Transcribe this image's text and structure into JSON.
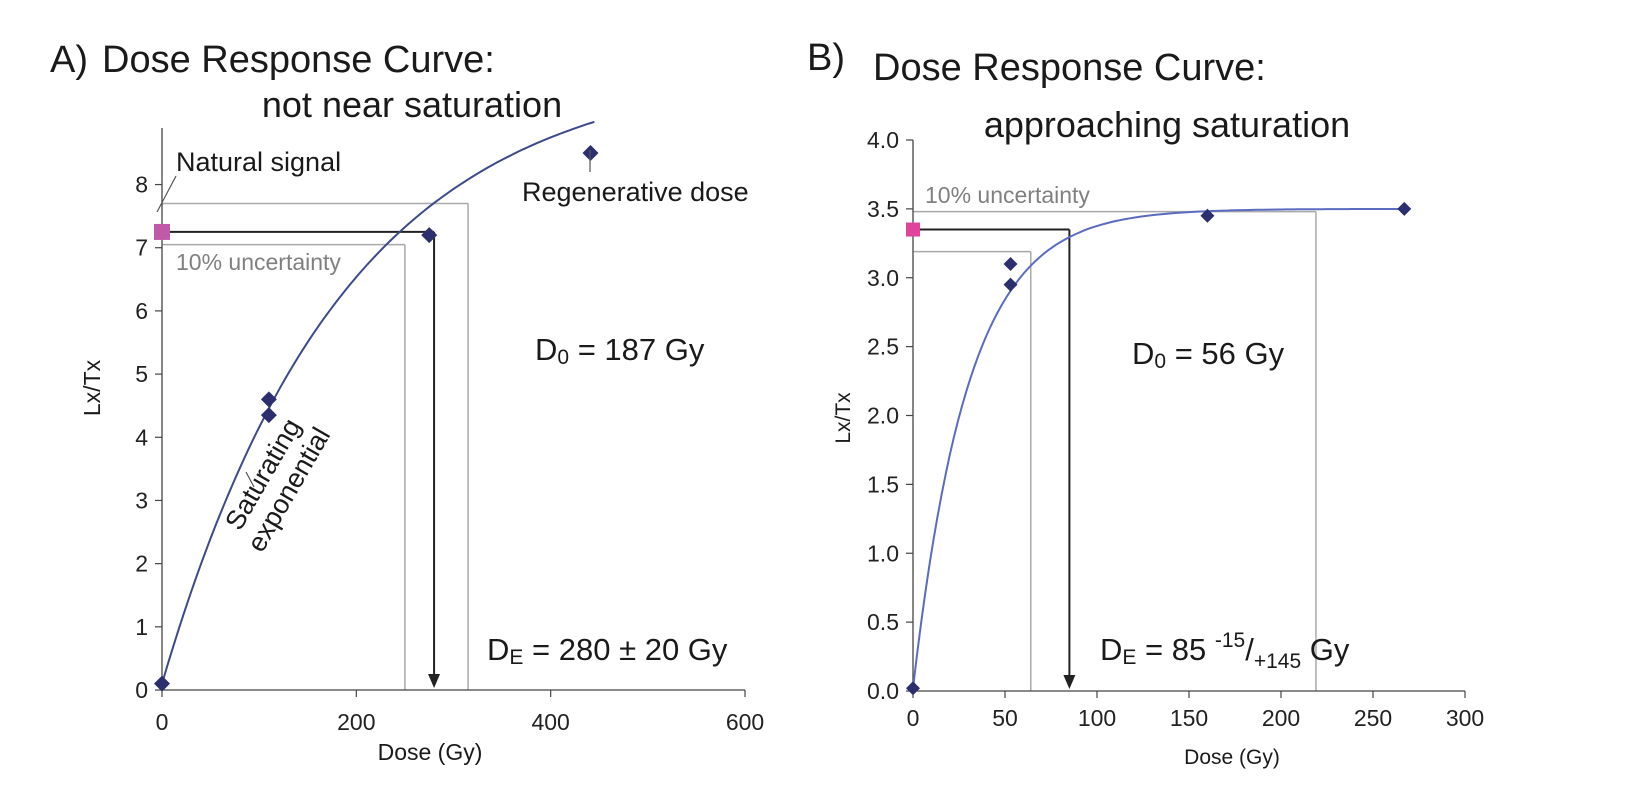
{
  "chart_data": [
    {
      "type": "scatter",
      "panel_label": "A)",
      "title": "Dose Response Curve:",
      "subtitle": "not near saturation",
      "xlabel": "Dose (Gy)",
      "ylabel": "Lx/Tx",
      "xlim": [
        0,
        600
      ],
      "ylim": [
        0,
        8.8
      ],
      "x_ticks": [
        "0",
        "200",
        "400",
        "600"
      ],
      "y_ticks": [
        "0",
        "1",
        "2",
        "3",
        "4",
        "5",
        "6",
        "7",
        "8"
      ],
      "series": [
        {
          "name": "Regenerative dose",
          "color": "#2b2f6e",
          "marker": "diamond",
          "points": [
            [
              0,
              0.1
            ],
            [
              110,
              4.6
            ],
            [
              110,
              4.35
            ],
            [
              275,
              7.2
            ],
            [
              441,
              8.5
            ]
          ]
        },
        {
          "name": "Natural signal",
          "color": "#c05aa8",
          "marker": "square",
          "points": [
            [
              0,
              7.25
            ]
          ]
        }
      ],
      "fit_curve": {
        "label": "Saturating exponential",
        "model": "saturating exponential",
        "color": "#3d4a8a"
      },
      "annotations": {
        "natural_signal": "Natural signal",
        "regenerative_dose": "Regenerative dose",
        "uncertainty": "10% uncertainty",
        "curve_label_line1": "Saturating",
        "curve_label_line2": "exponential",
        "d0_prefix": "D",
        "d0_sub": "0",
        "d0_value": " = 187 Gy",
        "de_prefix": "D",
        "de_sub": "E",
        "de_value": " = 280 ± 20 Gy"
      },
      "natural_lx_tx": 7.25,
      "uncertainty_band": {
        "upper_lx_tx": 7.7,
        "lower_lx_tx": 7.05,
        "lower_dose": 250,
        "upper_dose": 315
      },
      "equivalent_dose": 280,
      "d0": 187
    },
    {
      "type": "scatter",
      "panel_label": "B)",
      "title": "Dose Response Curve:",
      "subtitle": "approaching saturation",
      "xlabel": "Dose (Gy)",
      "ylabel": "Lx/Tx",
      "xlim": [
        0,
        300
      ],
      "ylim": [
        0,
        4.0
      ],
      "x_ticks": [
        "0",
        "50",
        "100",
        "150",
        "200",
        "250",
        "300"
      ],
      "y_ticks": [
        "0.0",
        "0.5",
        "1.0",
        "1.5",
        "2.0",
        "2.5",
        "3.0",
        "3.5",
        "4.0"
      ],
      "series": [
        {
          "name": "Regenerative dose",
          "color": "#2b2f6e",
          "marker": "diamond",
          "points": [
            [
              0,
              0.02
            ],
            [
              53,
              3.1
            ],
            [
              53,
              2.95
            ],
            [
              160,
              3.45
            ],
            [
              267,
              3.5
            ]
          ]
        },
        {
          "name": "Natural signal",
          "color": "#e0449a",
          "marker": "square",
          "points": [
            [
              0,
              3.35
            ]
          ]
        }
      ],
      "fit_curve": {
        "model": "saturating exponential",
        "color": "#5a6bc0"
      },
      "annotations": {
        "uncertainty": "10% uncertainty",
        "d0_prefix": "D",
        "d0_sub": "0",
        "d0_value": " = 56 Gy",
        "de_prefix": "D",
        "de_sub": "E",
        "de_main": " = 85 ",
        "de_sup": "-15",
        "de_slash": "/",
        "de_sub2": "+145",
        "de_unit": " Gy"
      },
      "natural_lx_tx": 3.35,
      "uncertainty_band": {
        "upper_lx_tx": 3.48,
        "lower_lx_tx": 3.19,
        "lower_dose": 64,
        "upper_dose": 219
      },
      "equivalent_dose": 85,
      "d0": 56
    }
  ]
}
